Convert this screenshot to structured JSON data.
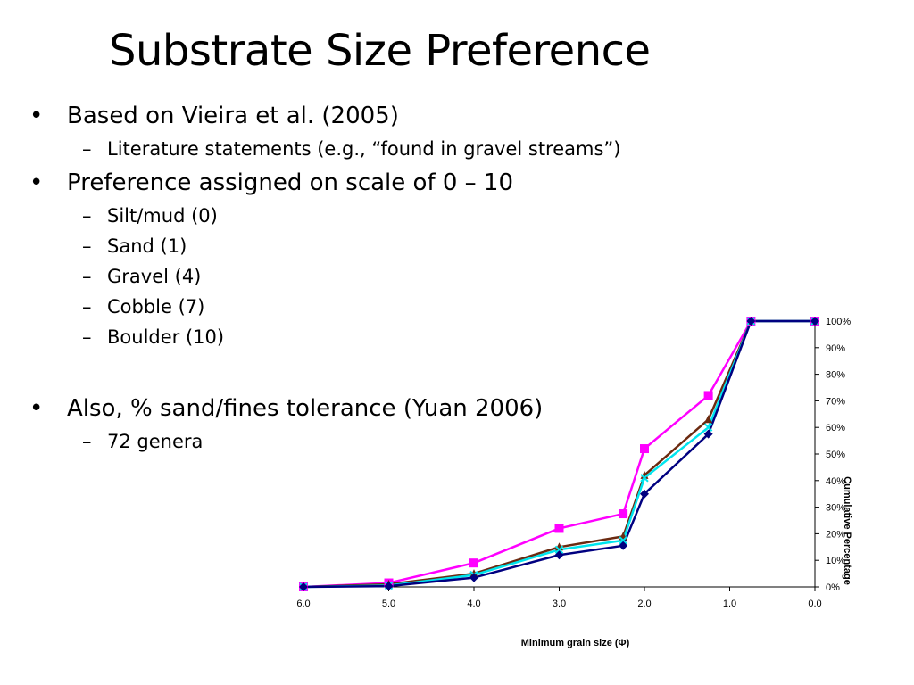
{
  "slide": {
    "title": "Substrate Size Preference",
    "bullets": [
      {
        "text": "Based on Vieira et al. (2005)",
        "subitems": [
          "Literature statements (e.g., “found in gravel streams”)"
        ]
      },
      {
        "text": "Preference assigned on scale of 0 – 10",
        "subitems": [
          "Silt/mud (0)",
          "Sand (1)",
          "Gravel (4)",
          "Cobble (7)",
          "Boulder (10)"
        ]
      },
      {
        "text": "Also, % sand/fines tolerance (Yuan 2006)",
        "subitems": [
          "72 genera"
        ]
      }
    ],
    "bullet_symbol": "•",
    "dash_symbol": "–"
  },
  "chart_data": {
    "type": "line",
    "title": "",
    "xlabel": "Minimum grain size (Φ)",
    "ylabel": "Cumulative Percentage",
    "x_reversed": true,
    "xlim": [
      0,
      6
    ],
    "ylim": [
      0,
      100
    ],
    "x_ticks": [
      6.0,
      5.0,
      4.0,
      3.0,
      2.0,
      1.0,
      0.0
    ],
    "x_tick_labels": [
      "6.0",
      "5.0",
      "4.0",
      "3.0",
      "2.0",
      "1.0",
      "0.0"
    ],
    "y_ticks": [
      100,
      90,
      80,
      70,
      60,
      50,
      40,
      30,
      20,
      10,
      0
    ],
    "y_tick_labels": [
      "100%",
      "90%",
      "80%",
      "70%",
      "60%",
      "50%",
      "40%",
      "30%",
      "20%",
      "10%",
      "0%"
    ],
    "y_axis_side": "right",
    "grid": false,
    "legend": false,
    "x": [
      6.0,
      5.0,
      4.0,
      3.0,
      2.25,
      2.0,
      1.25,
      0.75,
      0.0
    ],
    "series": [
      {
        "color": "#ff00ff",
        "marker": "square",
        "values": [
          0,
          1.5,
          9,
          22,
          27.5,
          52,
          72,
          100,
          100
        ]
      },
      {
        "color": "#6b2a10",
        "marker": "triangle",
        "values": [
          0,
          1,
          5,
          15,
          19,
          42,
          63,
          100,
          100
        ]
      },
      {
        "color": "#00e5ee",
        "marker": "x",
        "values": [
          0,
          0.5,
          4.5,
          14,
          17.5,
          41,
          60,
          100,
          100
        ]
      },
      {
        "color": "#000080",
        "marker": "diamond",
        "values": [
          0,
          0.3,
          3.5,
          12,
          15.5,
          35,
          57.5,
          100,
          100
        ]
      }
    ]
  }
}
